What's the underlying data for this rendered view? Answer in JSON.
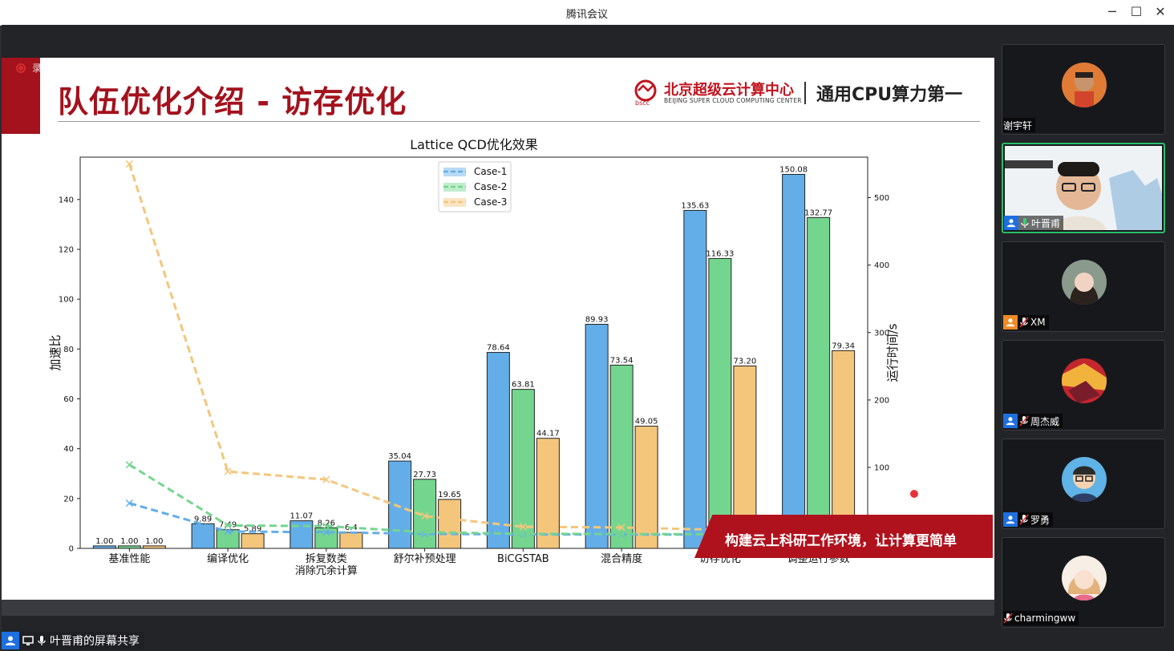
{
  "window": {
    "title": "腾讯会议"
  },
  "recording": {
    "label": "录制中"
  },
  "slide": {
    "title": "队伍优化介绍 - 访存优化",
    "org_cn": "北京超级云计算中心",
    "org_en": "BEIJING SUPER CLOUD COMPUTING CENTER",
    "slogan": "通用CPU算力第一",
    "banner": "构建云上科研工作环境，让计算更简单",
    "accent": "#a3121d"
  },
  "chart_data": {
    "type": "bar",
    "title": "Lattice QCD优化效果",
    "ylabel": "加速比",
    "y2label": "运行时间/s",
    "categories": [
      "基准性能",
      "编译优化",
      "拆复数类\n消除冗余计算",
      "舒尔补预处理",
      "BiCGSTAB",
      "混合精度",
      "访存优化",
      "调整运行参数"
    ],
    "ylim": [
      0,
      150
    ],
    "y2lim": [
      -20,
      560
    ],
    "yticks": [
      0,
      20,
      40,
      60,
      80,
      100,
      120,
      140
    ],
    "y2ticks": [
      0,
      100,
      200,
      300,
      400,
      500
    ],
    "series": [
      {
        "name": "Case-1",
        "color": "#63aee8",
        "values": [
          1.0,
          9.89,
          11.07,
          35.04,
          78.64,
          89.93,
          135.63,
          150.08
        ],
        "labels": [
          "1.00",
          "9.89",
          "11.07",
          "35.04",
          "78.64",
          "89.93",
          "135.63",
          "150.08"
        ],
        "runtime": [
          47,
          5,
          4,
          1.5,
          0.7,
          0.6,
          0.4,
          0.3
        ]
      },
      {
        "name": "Case-2",
        "color": "#74d68e",
        "values": [
          1.0,
          7.49,
          8.26,
          27.73,
          63.81,
          73.54,
          116.33,
          132.77
        ],
        "labels": [
          "1.00",
          "7.49",
          "8.26",
          "27.73",
          "63.81",
          "73.54",
          "116.33",
          "132.77"
        ],
        "runtime": [
          104,
          14,
          13,
          4,
          1.6,
          1.4,
          0.9,
          0.8
        ]
      },
      {
        "name": "Case-3",
        "color": "#f4c67c",
        "values": [
          1.0,
          5.89,
          6.4,
          19.65,
          44.17,
          49.05,
          73.2,
          79.34
        ],
        "labels": [
          "1.00",
          "5.89",
          "6.4",
          "19.65",
          "44.17",
          "49.05",
          "73.20",
          "79.34"
        ],
        "runtime": [
          550,
          94,
          82,
          28,
          12,
          11,
          7.5,
          7
        ]
      }
    ],
    "legend": "top-center",
    "grid": false
  },
  "participants": [
    {
      "name": "谢宇轩",
      "muted": null,
      "active": false,
      "avatar_color": "#e07b36"
    },
    {
      "name": "叶晋甫",
      "muted": false,
      "active": true,
      "avatar_color": "#e9eef1"
    },
    {
      "name": "XM",
      "muted": true,
      "active": false,
      "avatar_color": "#8a9a8c"
    },
    {
      "name": "周杰威",
      "muted": true,
      "active": false,
      "avatar_color": "#c4262e"
    },
    {
      "name": "罗勇",
      "muted": true,
      "active": false,
      "avatar_color": "#5fb3e6"
    },
    {
      "name": "charmingww",
      "muted": true,
      "active": false,
      "avatar_color": "#f1d6c8"
    }
  ],
  "share": {
    "label": "叶晋甫的屏幕共享"
  }
}
